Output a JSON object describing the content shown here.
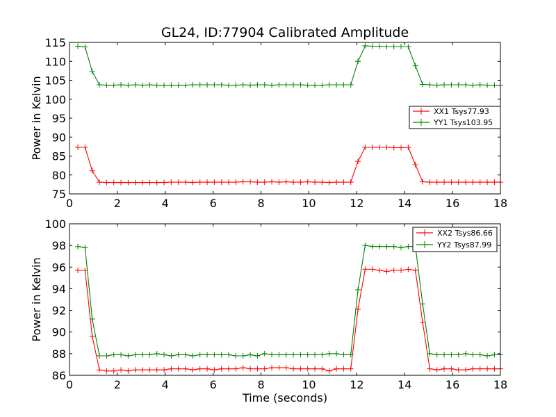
{
  "chart_data": [
    {
      "type": "line",
      "title": "GL24, ID:77904 Calibrated Amplitude",
      "xlabel": "",
      "ylabel": "Power in Kelvin",
      "xlim": [
        0,
        18
      ],
      "ylim": [
        75,
        115
      ],
      "xticks": [
        "0",
        "2",
        "4",
        "6",
        "8",
        "10",
        "12",
        "14",
        "16",
        "18"
      ],
      "yticks": [
        "75",
        "80",
        "85",
        "90",
        "95",
        "100",
        "105",
        "110",
        "115"
      ],
      "grid": false,
      "legend_position": "center-right",
      "x": [
        0.35,
        0.65,
        0.95,
        1.25,
        1.55,
        1.85,
        2.15,
        2.45,
        2.75,
        3.05,
        3.35,
        3.65,
        3.95,
        4.25,
        4.55,
        4.85,
        5.15,
        5.45,
        5.75,
        6.05,
        6.35,
        6.65,
        6.95,
        7.25,
        7.55,
        7.85,
        8.15,
        8.45,
        8.75,
        9.05,
        9.35,
        9.65,
        9.95,
        10.25,
        10.55,
        10.85,
        11.15,
        11.45,
        11.75,
        12.05,
        12.35,
        12.65,
        12.95,
        13.25,
        13.55,
        13.85,
        14.15,
        14.45,
        14.75,
        15.05,
        15.35,
        15.65,
        15.95,
        16.25,
        16.55,
        16.85,
        17.15,
        17.45,
        17.75,
        18.0
      ],
      "series": [
        {
          "name": "XX1 Tsys77.93",
          "color": "#ff0000",
          "values": [
            87.3,
            87.3,
            81.1,
            78.1,
            78.0,
            78.0,
            78.0,
            78.0,
            78.0,
            78.0,
            78.0,
            78.0,
            78.0,
            78.1,
            78.1,
            78.1,
            78.0,
            78.1,
            78.1,
            78.1,
            78.1,
            78.1,
            78.1,
            78.2,
            78.2,
            78.1,
            78.1,
            78.2,
            78.1,
            78.2,
            78.1,
            78.1,
            78.2,
            78.1,
            78.1,
            78.0,
            78.1,
            78.1,
            78.1,
            83.6,
            87.3,
            87.3,
            87.3,
            87.3,
            87.2,
            87.2,
            87.3,
            82.7,
            78.2,
            78.1,
            78.1,
            78.1,
            78.1,
            78.1,
            78.1,
            78.1,
            78.1,
            78.1,
            78.1,
            78.1
          ]
        },
        {
          "name": "YY1 Tsys103.95",
          "color": "#008000",
          "values": [
            114.0,
            113.8,
            107.3,
            103.8,
            103.7,
            103.7,
            103.8,
            103.7,
            103.8,
            103.7,
            103.8,
            103.7,
            103.7,
            103.7,
            103.7,
            103.7,
            103.8,
            103.8,
            103.8,
            103.8,
            103.8,
            103.7,
            103.7,
            103.8,
            103.7,
            103.8,
            103.8,
            103.7,
            103.8,
            103.8,
            103.8,
            103.8,
            103.7,
            103.7,
            103.7,
            103.8,
            103.8,
            103.8,
            103.8,
            110.0,
            114.1,
            114.0,
            114.0,
            113.9,
            113.9,
            113.9,
            113.9,
            108.8,
            103.9,
            103.8,
            103.7,
            103.8,
            103.8,
            103.8,
            103.8,
            103.7,
            103.8,
            103.7,
            103.7,
            103.7
          ]
        }
      ]
    },
    {
      "type": "line",
      "title": "",
      "xlabel": "Time (seconds)",
      "ylabel": "Power in Kelvin",
      "xlim": [
        0,
        18
      ],
      "ylim": [
        86,
        100
      ],
      "xticks": [
        "0",
        "2",
        "4",
        "6",
        "8",
        "10",
        "12",
        "14",
        "16",
        "18"
      ],
      "yticks": [
        "86",
        "88",
        "90",
        "92",
        "94",
        "96",
        "98",
        "100"
      ],
      "grid": false,
      "legend_position": "top-right",
      "x": [
        0.35,
        0.65,
        0.95,
        1.25,
        1.55,
        1.85,
        2.15,
        2.45,
        2.75,
        3.05,
        3.35,
        3.65,
        3.95,
        4.25,
        4.55,
        4.85,
        5.15,
        5.45,
        5.75,
        6.05,
        6.35,
        6.65,
        6.95,
        7.25,
        7.55,
        7.85,
        8.15,
        8.45,
        8.75,
        9.05,
        9.35,
        9.65,
        9.95,
        10.25,
        10.55,
        10.85,
        11.15,
        11.45,
        11.75,
        12.05,
        12.35,
        12.65,
        12.95,
        13.25,
        13.55,
        13.85,
        14.15,
        14.45,
        14.75,
        15.05,
        15.35,
        15.65,
        15.95,
        16.25,
        16.55,
        16.85,
        17.15,
        17.45,
        17.75,
        18.0
      ],
      "series": [
        {
          "name": "XX2 Tsys86.66",
          "color": "#ff0000",
          "values": [
            95.7,
            95.7,
            89.6,
            86.5,
            86.4,
            86.4,
            86.5,
            86.4,
            86.5,
            86.5,
            86.5,
            86.5,
            86.5,
            86.6,
            86.6,
            86.6,
            86.5,
            86.6,
            86.6,
            86.5,
            86.6,
            86.6,
            86.6,
            86.7,
            86.6,
            86.6,
            86.6,
            86.7,
            86.7,
            86.7,
            86.6,
            86.6,
            86.6,
            86.6,
            86.6,
            86.4,
            86.6,
            86.6,
            86.6,
            92.1,
            95.8,
            95.8,
            95.7,
            95.6,
            95.7,
            95.7,
            95.8,
            95.7,
            90.9,
            86.6,
            86.5,
            86.6,
            86.6,
            86.5,
            86.5,
            86.6,
            86.6,
            86.6,
            86.6,
            86.6
          ]
        },
        {
          "name": "YY2 Tsys87.99",
          "color": "#008000",
          "values": [
            97.9,
            97.8,
            91.2,
            87.8,
            87.8,
            87.9,
            87.9,
            87.8,
            87.9,
            87.9,
            87.9,
            88.0,
            87.9,
            87.8,
            87.9,
            87.9,
            87.8,
            87.9,
            87.9,
            87.9,
            87.9,
            87.9,
            87.8,
            87.8,
            87.9,
            87.8,
            88.0,
            87.9,
            87.9,
            87.9,
            87.9,
            87.9,
            87.9,
            87.9,
            87.9,
            88.0,
            88.0,
            87.9,
            87.9,
            93.9,
            98.0,
            97.9,
            97.9,
            97.9,
            97.9,
            97.8,
            97.9,
            97.9,
            92.6,
            88.0,
            87.9,
            87.9,
            87.9,
            87.9,
            88.0,
            87.9,
            87.9,
            87.8,
            87.9,
            87.9
          ]
        }
      ]
    }
  ]
}
